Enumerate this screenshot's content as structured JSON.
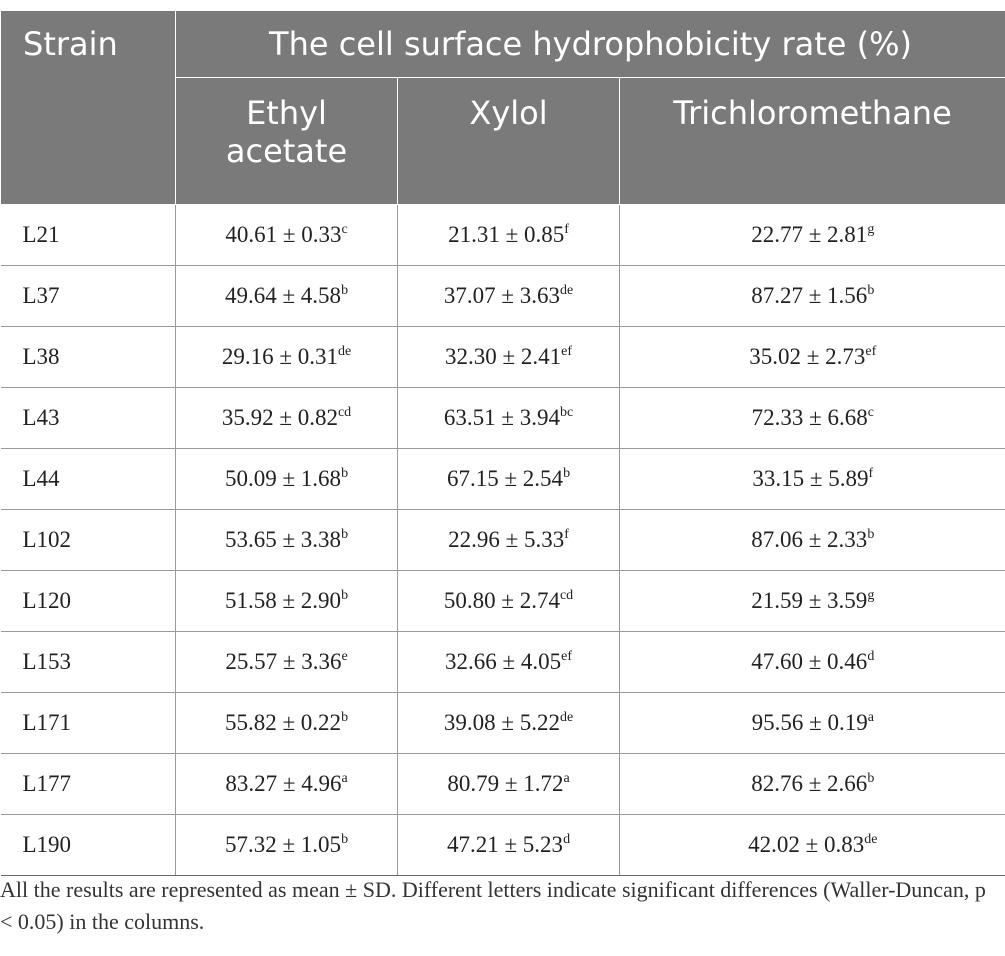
{
  "table": {
    "strain_header": "Strain",
    "group_header": "The cell surface hydrophobicity rate (%)",
    "columns": [
      "Ethyl acetate",
      "Xylol",
      "Trichloromethane"
    ],
    "rows": [
      {
        "strain": "L21",
        "cells": [
          {
            "v": "40.61 ± 0.33",
            "s": "c"
          },
          {
            "v": "21.31 ± 0.85",
            "s": "f"
          },
          {
            "v": "22.77 ± 2.81",
            "s": "g"
          }
        ]
      },
      {
        "strain": "L37",
        "cells": [
          {
            "v": "49.64 ± 4.58",
            "s": "b"
          },
          {
            "v": "37.07 ± 3.63",
            "s": "de"
          },
          {
            "v": "87.27 ± 1.56",
            "s": "b"
          }
        ]
      },
      {
        "strain": "L38",
        "cells": [
          {
            "v": "29.16 ± 0.31",
            "s": "de"
          },
          {
            "v": "32.30 ± 2.41",
            "s": "ef"
          },
          {
            "v": "35.02 ± 2.73",
            "s": "ef"
          }
        ]
      },
      {
        "strain": "L43",
        "cells": [
          {
            "v": "35.92 ± 0.82",
            "s": "cd"
          },
          {
            "v": "63.51 ± 3.94",
            "s": "bc"
          },
          {
            "v": "72.33 ± 6.68",
            "s": "c"
          }
        ]
      },
      {
        "strain": "L44",
        "cells": [
          {
            "v": "50.09 ± 1.68",
            "s": "b"
          },
          {
            "v": "67.15 ± 2.54",
            "s": "b"
          },
          {
            "v": "33.15 ± 5.89",
            "s": "f"
          }
        ]
      },
      {
        "strain": "L102",
        "cells": [
          {
            "v": "53.65 ± 3.38",
            "s": "b"
          },
          {
            "v": "22.96 ± 5.33",
            "s": "f"
          },
          {
            "v": "87.06 ± 2.33",
            "s": "b"
          }
        ]
      },
      {
        "strain": "L120",
        "cells": [
          {
            "v": "51.58 ± 2.90",
            "s": "b"
          },
          {
            "v": "50.80 ± 2.74",
            "s": "cd"
          },
          {
            "v": "21.59 ± 3.59",
            "s": "g"
          }
        ]
      },
      {
        "strain": "L153",
        "cells": [
          {
            "v": "25.57 ± 3.36",
            "s": "e"
          },
          {
            "v": "32.66 ± 4.05",
            "s": "ef"
          },
          {
            "v": "47.60 ± 0.46",
            "s": "d"
          }
        ]
      },
      {
        "strain": "L171",
        "cells": [
          {
            "v": "55.82 ± 0.22",
            "s": "b"
          },
          {
            "v": "39.08 ± 5.22",
            "s": "de"
          },
          {
            "v": "95.56 ± 0.19",
            "s": "a"
          }
        ]
      },
      {
        "strain": "L177",
        "cells": [
          {
            "v": "83.27 ± 4.96",
            "s": "a"
          },
          {
            "v": "80.79 ± 1.72",
            "s": "a"
          },
          {
            "v": "82.76 ± 2.66",
            "s": "b"
          }
        ]
      },
      {
        "strain": "L190",
        "cells": [
          {
            "v": "57.32 ± 1.05",
            "s": "b"
          },
          {
            "v": "47.21 ± 5.23",
            "s": "d"
          },
          {
            "v": "42.02 ± 0.83",
            "s": "de"
          }
        ]
      }
    ]
  },
  "footnote": "All the results are represented as mean ± SD. Different letters indicate significant differences (Waller-Duncan, p < 0.05) in the columns."
}
